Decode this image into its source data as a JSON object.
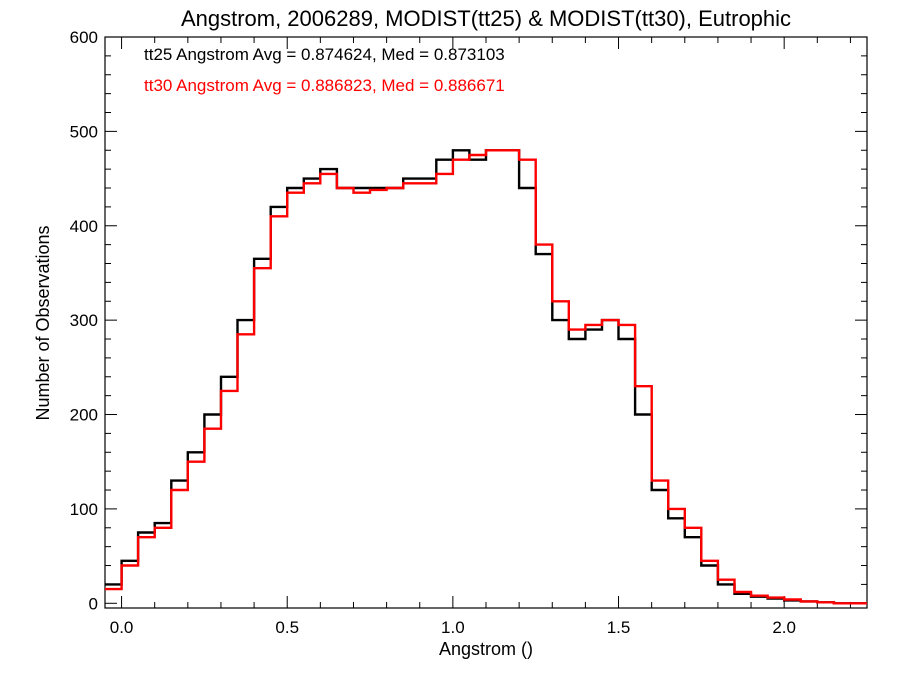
{
  "chart_data": {
    "type": "line",
    "title": "Angstrom, 2006289, MODIST(tt25) & MODIST(tt30), Eutrophic",
    "xlabel": "Angstrom ()",
    "ylabel": "Number of Observations",
    "xlim": [
      -0.05,
      2.25
    ],
    "ylim": [
      -5,
      600
    ],
    "xticks": [
      "0.0",
      "0.5",
      "1.0",
      "1.5",
      "2.0"
    ],
    "yticks": [
      "0",
      "100",
      "200",
      "300",
      "400",
      "500",
      "600"
    ],
    "annotations": [
      {
        "text": "tt25 Angstrom Avg = 0.874624, Med = 0.873103",
        "color": "#000000"
      },
      {
        "text": "tt30 Angstrom Avg = 0.886823, Med = 0.886671",
        "color": "#ff0000"
      }
    ],
    "x": [
      -0.05,
      0.0,
      0.05,
      0.1,
      0.15,
      0.2,
      0.25,
      0.3,
      0.35,
      0.4,
      0.45,
      0.5,
      0.55,
      0.6,
      0.65,
      0.7,
      0.75,
      0.8,
      0.85,
      0.9,
      0.95,
      1.0,
      1.05,
      1.1,
      1.15,
      1.2,
      1.25,
      1.3,
      1.35,
      1.4,
      1.45,
      1.5,
      1.55,
      1.6,
      1.65,
      1.7,
      1.75,
      1.8,
      1.85,
      1.9,
      1.95,
      2.0,
      2.05,
      2.1,
      2.15,
      2.2,
      2.25
    ],
    "series": [
      {
        "name": "tt25",
        "color": "#000000",
        "values": [
          20,
          45,
          75,
          85,
          130,
          160,
          200,
          240,
          300,
          365,
          420,
          440,
          450,
          460,
          440,
          440,
          440,
          440,
          450,
          450,
          470,
          480,
          470,
          480,
          480,
          440,
          370,
          300,
          280,
          290,
          300,
          280,
          200,
          120,
          90,
          70,
          40,
          20,
          10,
          7,
          5,
          3,
          2,
          1,
          0,
          0,
          0
        ]
      },
      {
        "name": "tt30",
        "color": "#ff0000",
        "values": [
          15,
          40,
          70,
          80,
          120,
          150,
          185,
          225,
          285,
          355,
          410,
          435,
          445,
          455,
          440,
          435,
          438,
          440,
          445,
          445,
          455,
          470,
          475,
          480,
          480,
          470,
          380,
          320,
          290,
          295,
          300,
          295,
          230,
          130,
          100,
          80,
          45,
          25,
          12,
          8,
          6,
          4,
          2,
          1,
          0,
          0,
          0
        ]
      }
    ]
  }
}
